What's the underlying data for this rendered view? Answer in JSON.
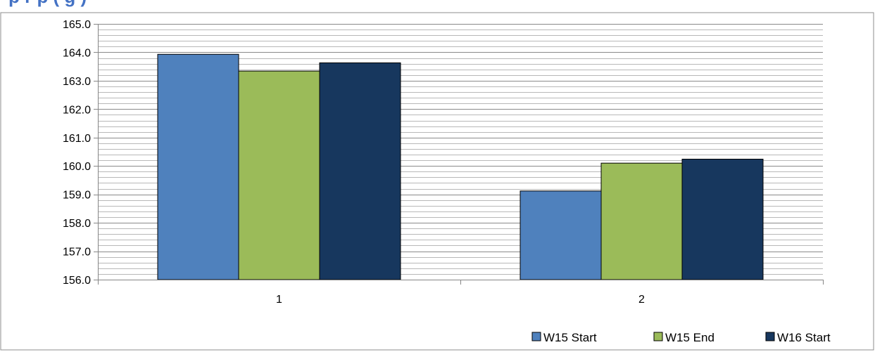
{
  "header": {
    "title_visible_fragment": "p   r   p    (   g    )"
  },
  "chart_data": {
    "type": "bar",
    "categories": [
      "1",
      "2"
    ],
    "series": [
      {
        "name": "W15 Start",
        "values": [
          163.93,
          159.12
        ],
        "color": "#4F81BD"
      },
      {
        "name": "W15 End",
        "values": [
          163.34,
          160.1
        ],
        "color": "#9BBB59"
      },
      {
        "name": "W16 Start",
        "values": [
          163.63,
          160.24
        ],
        "color": "#17375E"
      }
    ],
    "ylim": [
      156.0,
      165.0
    ],
    "yticks": [
      "156.0",
      "157.0",
      "158.0",
      "159.0",
      "160.0",
      "161.0",
      "162.0",
      "163.0",
      "164.0",
      "165.0"
    ],
    "minor_grid_step": 0.2,
    "grid": true,
    "legend": "bottom-right"
  }
}
